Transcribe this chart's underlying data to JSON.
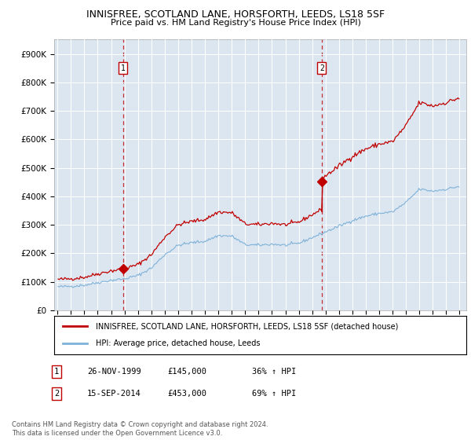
{
  "title": "INNISFREE, SCOTLAND LANE, HORSFORTH, LEEDS, LS18 5SF",
  "subtitle": "Price paid vs. HM Land Registry's House Price Index (HPI)",
  "legend_line1": "INNISFREE, SCOTLAND LANE, HORSFORTH, LEEDS, LS18 5SF (detached house)",
  "legend_line2": "HPI: Average price, detached house, Leeds",
  "footnote": "Contains HM Land Registry data © Crown copyright and database right 2024.\nThis data is licensed under the Open Government Licence v3.0.",
  "sale1_date": "26-NOV-1999",
  "sale1_price": 145000,
  "sale1_label": "36% ↑ HPI",
  "sale2_date": "15-SEP-2014",
  "sale2_price": 453000,
  "sale2_label": "69% ↑ HPI",
  "hpi_color": "#7fb2d8",
  "price_color": "#c00000",
  "background_color": "#dce6f1",
  "ylim": [
    0,
    950000
  ],
  "yticks": [
    0,
    100000,
    200000,
    300000,
    400000,
    500000,
    600000,
    700000,
    800000,
    900000
  ],
  "xlim_start": 1994.75,
  "xlim_end": 2025.5
}
